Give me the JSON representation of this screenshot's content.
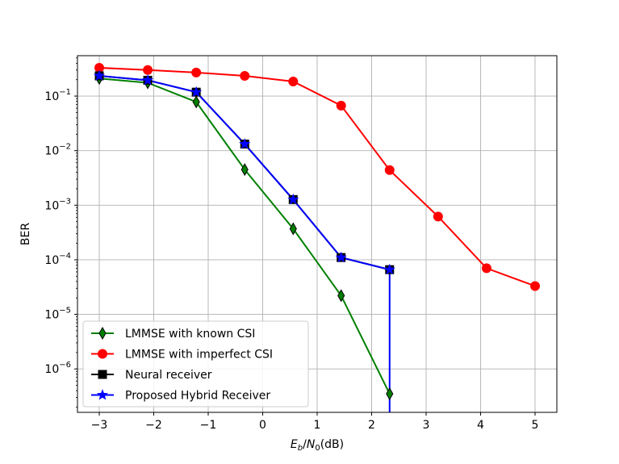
{
  "chart_data": {
    "type": "line",
    "xlabel": "E_b/N_0(dB)",
    "xlabel_parts": {
      "main1": "E",
      "sub1": "b",
      "slash": "/",
      "main2": "N",
      "sub2": "0",
      "unit": "(dB)"
    },
    "ylabel": "BER",
    "xlim": [
      -3.4,
      5.4
    ],
    "ylim": [
      1.6e-07,
      0.55
    ],
    "yscale": "log",
    "grid": true,
    "legend_position": "lower-left",
    "x_ticks": [
      {
        "value": -3,
        "label": "−3"
      },
      {
        "value": -2,
        "label": "−2"
      },
      {
        "value": -1,
        "label": "−1"
      },
      {
        "value": 0,
        "label": "0"
      },
      {
        "value": 1,
        "label": "1"
      },
      {
        "value": 2,
        "label": "2"
      },
      {
        "value": 3,
        "label": "3"
      },
      {
        "value": 4,
        "label": "4"
      },
      {
        "value": 5,
        "label": "5"
      }
    ],
    "y_ticks": [
      {
        "value": 0.1,
        "base": "10",
        "exp": "−1"
      },
      {
        "value": 0.01,
        "base": "10",
        "exp": "−2"
      },
      {
        "value": 0.001,
        "base": "10",
        "exp": "−3"
      },
      {
        "value": 0.0001,
        "base": "10",
        "exp": "−4"
      },
      {
        "value": 1e-05,
        "base": "10",
        "exp": "−5"
      },
      {
        "value": 1e-06,
        "base": "10",
        "exp": "−6"
      }
    ],
    "series": [
      {
        "name": "LMMSE with known CSI",
        "color": "#008000",
        "marker": "diamond",
        "x": [
          -3,
          -2.11,
          -1.22,
          -0.33,
          0.56,
          1.44,
          2.33
        ],
        "y": [
          0.21,
          0.175,
          0.078,
          0.0045,
          0.00037,
          2.2e-05,
          3.5e-07
        ]
      },
      {
        "name": "LMMSE with imperfect CSI",
        "color": "#ff0000",
        "marker": "circle",
        "x": [
          -3,
          -2.11,
          -1.22,
          -0.33,
          0.56,
          1.44,
          2.33,
          3.22,
          4.11,
          5
        ],
        "y": [
          0.33,
          0.3,
          0.27,
          0.235,
          0.185,
          0.067,
          0.0044,
          0.00062,
          7e-05,
          3.3e-05
        ]
      },
      {
        "name": "Neural receiver",
        "color": "#000000",
        "marker": "square",
        "x": [
          -3,
          -2.11,
          -1.22,
          -0.33,
          0.56,
          1.44,
          2.33
        ],
        "y": [
          0.235,
          0.195,
          0.118,
          0.0132,
          0.00127,
          0.00011,
          6.6e-05
        ]
      },
      {
        "name": "Proposed Hybrid Receiver",
        "color": "#0000ff",
        "marker": "star",
        "x": [
          -3,
          -2.11,
          -1.22,
          -0.33,
          0.56,
          1.44,
          2.33,
          2.33
        ],
        "y": [
          0.235,
          0.195,
          0.118,
          0.0132,
          0.00127,
          0.00011,
          6.6e-05,
          1e-09
        ]
      }
    ]
  }
}
